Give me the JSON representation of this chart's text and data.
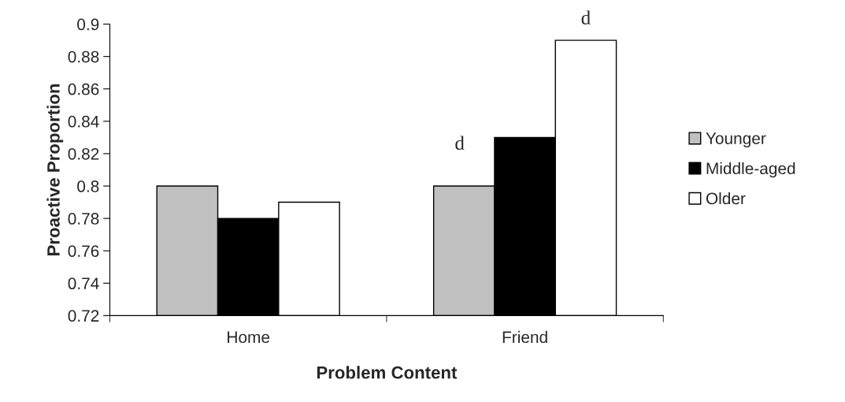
{
  "chart_data": {
    "type": "bar",
    "xlabel": "Problem Content",
    "ylabel": "Proactive Proportion",
    "categories": [
      "Home",
      "Friend"
    ],
    "series": [
      {
        "name": "Younger",
        "color": "#c0c0c0",
        "values": [
          0.8,
          0.8
        ]
      },
      {
        "name": "Middle-aged",
        "color": "#000000",
        "values": [
          0.78,
          0.83
        ]
      },
      {
        "name": "Older",
        "color": "#ffffff",
        "values": [
          0.79,
          0.89
        ]
      }
    ],
    "ylim": [
      0.72,
      0.9
    ],
    "yticks": [
      0.72,
      0.74,
      0.76,
      0.78,
      0.8,
      0.82,
      0.84,
      0.86,
      0.88,
      0.9
    ],
    "annotations": [
      "d",
      "d"
    ],
    "grid": false,
    "legend": "right"
  }
}
